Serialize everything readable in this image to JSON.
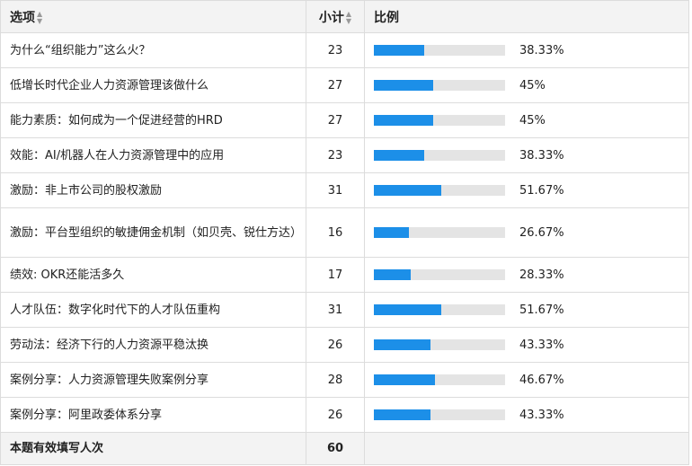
{
  "header": {
    "option": "选项",
    "count": "小计",
    "ratio": "比例"
  },
  "chart_data": {
    "type": "table",
    "rows": [
      {
        "label": "为什么“组织能力”这么火？",
        "count": 23,
        "percent": 38.33,
        "pct_text": "38.33%"
      },
      {
        "label": "低增长时代企业人力资源管理该做什么",
        "count": 27,
        "percent": 45,
        "pct_text": "45%"
      },
      {
        "label": "能力素质：如何成为一个促进经营的HRD",
        "count": 27,
        "percent": 45,
        "pct_text": "45%"
      },
      {
        "label": "效能：AI/机器人在人力资源管理中的应用",
        "count": 23,
        "percent": 38.33,
        "pct_text": "38.33%"
      },
      {
        "label": "激励：非上市公司的股权激励",
        "count": 31,
        "percent": 51.67,
        "pct_text": "51.67%"
      },
      {
        "label": "激励：平台型组织的敏捷佣金机制（如贝壳、锐仕方达）",
        "count": 16,
        "percent": 26.67,
        "pct_text": "26.67%"
      },
      {
        "label": "绩效: OKR还能活多久",
        "count": 17,
        "percent": 28.33,
        "pct_text": "28.33%"
      },
      {
        "label": "人才队伍：数字化时代下的人才队伍重构",
        "count": 31,
        "percent": 51.67,
        "pct_text": "51.67%"
      },
      {
        "label": "劳动法：经济下行的人力资源平稳汰换",
        "count": 26,
        "percent": 43.33,
        "pct_text": "43.33%"
      },
      {
        "label": "案例分享：人力资源管理失败案例分享",
        "count": 28,
        "percent": 46.67,
        "pct_text": "46.67%"
      },
      {
        "label": "案例分享：阿里政委体系分享",
        "count": 26,
        "percent": 43.33,
        "pct_text": "43.33%"
      }
    ],
    "total_label": "本题有效填写人次",
    "total": 60,
    "bar_color": "#1c8fe8",
    "track_color": "#e4e4e4"
  }
}
